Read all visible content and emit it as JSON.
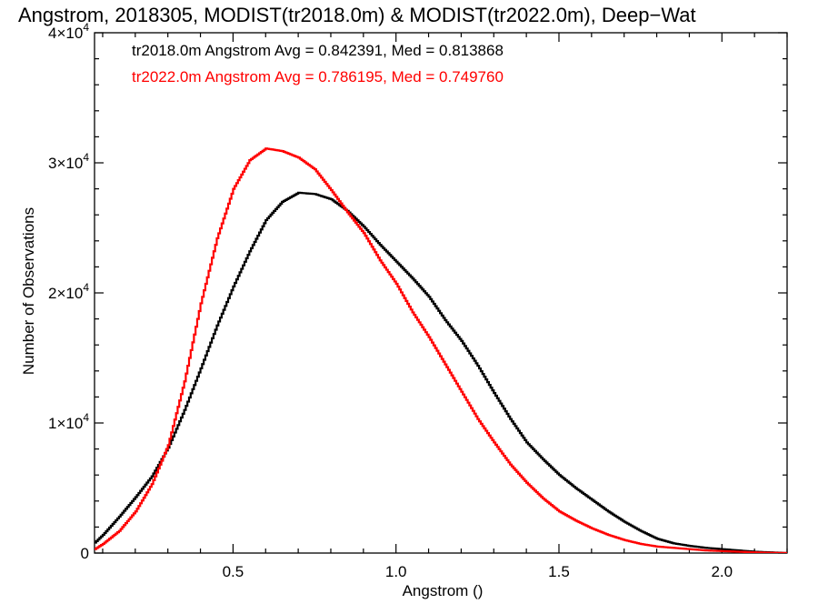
{
  "chart_data": {
    "type": "line",
    "style": "step",
    "title": "Angstrom, 2018305, MODIST(tr2018.0m) & MODIST(tr2022.0m), Deep−Wat",
    "xlabel": "Angstrom ()",
    "ylabel": "Number of Observations",
    "xlim": [
      0.075,
      2.2
    ],
    "ylim": [
      0,
      40000
    ],
    "xticks": [
      {
        "value": 0.5,
        "label": "0.5"
      },
      {
        "value": 1.0,
        "label": "1.0"
      },
      {
        "value": 1.5,
        "label": "1.5"
      },
      {
        "value": 2.0,
        "label": "2.0"
      }
    ],
    "yticks": [
      {
        "value": 0,
        "base": "0",
        "exp": ""
      },
      {
        "value": 10000,
        "base": "1×10",
        "exp": "4"
      },
      {
        "value": 20000,
        "base": "2×10",
        "exp": "4"
      },
      {
        "value": 30000,
        "base": "3×10",
        "exp": "4"
      },
      {
        "value": 40000,
        "base": "4×10",
        "exp": "4"
      }
    ],
    "grid": false,
    "annotations": [
      {
        "text": "tr2018.0m Angstrom Avg = 0.842391, Med = 0.813868",
        "color": "#000000"
      },
      {
        "text": "tr2022.0m Angstrom Avg = 0.786195, Med = 0.749760",
        "color": "#ff0000"
      }
    ],
    "series": [
      {
        "color": "#000000",
        "points": [
          [
            0.075,
            800
          ],
          [
            0.1,
            1400
          ],
          [
            0.15,
            2800
          ],
          [
            0.2,
            4300
          ],
          [
            0.25,
            5900
          ],
          [
            0.3,
            8100
          ],
          [
            0.35,
            11000
          ],
          [
            0.4,
            14200
          ],
          [
            0.45,
            17500
          ],
          [
            0.5,
            20500
          ],
          [
            0.55,
            23200
          ],
          [
            0.6,
            25600
          ],
          [
            0.65,
            27000
          ],
          [
            0.7,
            27700
          ],
          [
            0.75,
            27600
          ],
          [
            0.8,
            27200
          ],
          [
            0.85,
            26300
          ],
          [
            0.9,
            25100
          ],
          [
            0.95,
            23700
          ],
          [
            1.0,
            22400
          ],
          [
            1.05,
            21100
          ],
          [
            1.1,
            19700
          ],
          [
            1.15,
            17900
          ],
          [
            1.2,
            16300
          ],
          [
            1.25,
            14400
          ],
          [
            1.3,
            12300
          ],
          [
            1.35,
            10300
          ],
          [
            1.4,
            8500
          ],
          [
            1.45,
            7200
          ],
          [
            1.5,
            6000
          ],
          [
            1.55,
            5000
          ],
          [
            1.6,
            4100
          ],
          [
            1.65,
            3200
          ],
          [
            1.7,
            2400
          ],
          [
            1.75,
            1700
          ],
          [
            1.8,
            1100
          ],
          [
            1.85,
            750
          ],
          [
            1.9,
            550
          ],
          [
            1.95,
            400
          ],
          [
            2.0,
            300
          ],
          [
            2.05,
            200
          ],
          [
            2.1,
            100
          ],
          [
            2.15,
            50
          ],
          [
            2.2,
            0
          ]
        ]
      },
      {
        "color": "#ff0000",
        "points": [
          [
            0.075,
            300
          ],
          [
            0.1,
            700
          ],
          [
            0.15,
            1700
          ],
          [
            0.2,
            3200
          ],
          [
            0.25,
            5300
          ],
          [
            0.3,
            8300
          ],
          [
            0.35,
            13200
          ],
          [
            0.4,
            19200
          ],
          [
            0.45,
            24200
          ],
          [
            0.5,
            28000
          ],
          [
            0.55,
            30200
          ],
          [
            0.6,
            31100
          ],
          [
            0.65,
            30900
          ],
          [
            0.7,
            30400
          ],
          [
            0.75,
            29500
          ],
          [
            0.8,
            27900
          ],
          [
            0.85,
            26200
          ],
          [
            0.9,
            24600
          ],
          [
            0.95,
            22500
          ],
          [
            1.0,
            20700
          ],
          [
            1.05,
            18500
          ],
          [
            1.1,
            16600
          ],
          [
            1.15,
            14500
          ],
          [
            1.2,
            12400
          ],
          [
            1.25,
            10300
          ],
          [
            1.3,
            8500
          ],
          [
            1.35,
            6800
          ],
          [
            1.4,
            5400
          ],
          [
            1.45,
            4200
          ],
          [
            1.5,
            3200
          ],
          [
            1.55,
            2500
          ],
          [
            1.6,
            1900
          ],
          [
            1.65,
            1400
          ],
          [
            1.7,
            1000
          ],
          [
            1.75,
            700
          ],
          [
            1.8,
            500
          ],
          [
            1.85,
            400
          ],
          [
            1.9,
            300
          ],
          [
            1.95,
            200
          ],
          [
            2.0,
            150
          ],
          [
            2.05,
            100
          ],
          [
            2.1,
            50
          ],
          [
            2.15,
            20
          ],
          [
            2.2,
            0
          ]
        ]
      }
    ]
  }
}
